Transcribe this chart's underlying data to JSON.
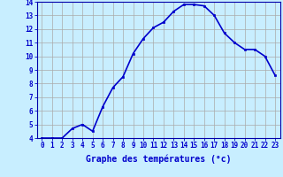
{
  "hours": [
    0,
    1,
    2,
    3,
    4,
    5,
    6,
    7,
    8,
    9,
    10,
    11,
    12,
    13,
    14,
    15,
    16,
    17,
    18,
    19,
    20,
    21,
    22,
    23
  ],
  "temperatures": [
    4.0,
    4.0,
    4.0,
    4.7,
    5.0,
    4.5,
    6.3,
    7.7,
    8.5,
    10.2,
    11.3,
    12.1,
    12.5,
    13.3,
    13.8,
    13.8,
    13.7,
    13.0,
    11.7,
    11.0,
    10.5,
    10.5,
    10.0,
    8.6
  ],
  "line_color": "#0000cc",
  "marker": "s",
  "marker_size": 2,
  "bg_color": "#c8eeff",
  "grid_color": "#aaaaaa",
  "xlabel": "Graphe des températures (°c)",
  "xlabel_color": "#0000cc",
  "tick_color": "#0000cc",
  "ylim": [
    4,
    14
  ],
  "xlim_min": -0.5,
  "xlim_max": 23.5,
  "yticks": [
    4,
    5,
    6,
    7,
    8,
    9,
    10,
    11,
    12,
    13,
    14
  ],
  "xtick_labels": [
    "0",
    "1",
    "2",
    "3",
    "4",
    "5",
    "6",
    "7",
    "8",
    "9",
    "10",
    "11",
    "12",
    "13",
    "14",
    "15",
    "16",
    "17",
    "18",
    "19",
    "20",
    "21",
    "22",
    "23"
  ],
  "spine_color": "#0000aa",
  "linewidth": 1.2,
  "tick_fontsize": 5.5,
  "xlabel_fontsize": 7.0
}
